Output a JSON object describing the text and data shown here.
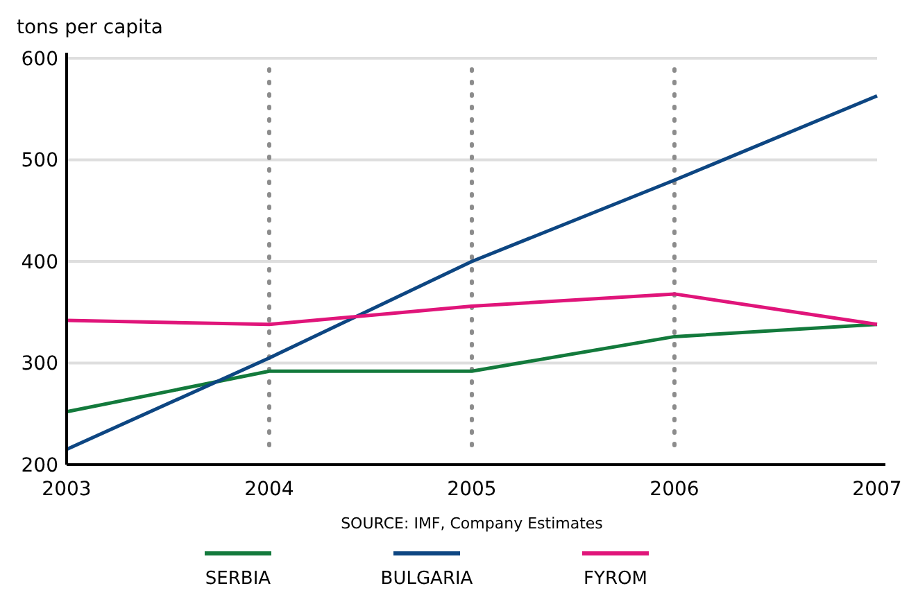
{
  "chart_data": {
    "type": "line",
    "ylabel": "tons per capita",
    "x": [
      2003,
      2004,
      2005,
      2006,
      2007
    ],
    "xlim": [
      2003,
      2007
    ],
    "xticks": [
      2003,
      2004,
      2005,
      2006,
      2007
    ],
    "ylim": [
      200,
      600
    ],
    "yticks": [
      200,
      300,
      400,
      500,
      600
    ],
    "grid": "y",
    "legend": "bottom",
    "line_style": "solid",
    "marker": "none",
    "series": [
      {
        "name": "SERBIA",
        "color": "#137a3c",
        "values": [
          252,
          292,
          292,
          326,
          338
        ]
      },
      {
        "name": "BULGARIA",
        "color": "#0d4682",
        "values": [
          215,
          305,
          400,
          480,
          563
        ]
      },
      {
        "name": "FYROM",
        "color": "#e0157a",
        "values": [
          342,
          338,
          356,
          368,
          338
        ]
      }
    ],
    "ref_lines": [
      {
        "axis": "x",
        "value": 2004,
        "color": "#8c8c8c",
        "line_style": "dotted"
      },
      {
        "axis": "x",
        "value": 2005,
        "color": "#8c8c8c",
        "line_style": "dotted"
      },
      {
        "axis": "x",
        "value": 2006,
        "color": "#8c8c8c",
        "line_style": "dotted"
      }
    ],
    "annotations": [
      "SOURCE: IMF, Company Estimates"
    ]
  }
}
